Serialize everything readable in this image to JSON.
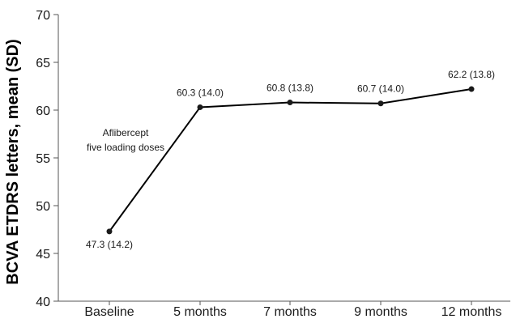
{
  "chart_data": {
    "type": "line",
    "ylabel": "BCVA ETDRS letters, mean (SD)",
    "xlabel": "",
    "title": "",
    "categories": [
      "Baseline",
      "5 months",
      "7 months",
      "9 months",
      "12 months"
    ],
    "ylim": [
      40,
      70
    ],
    "yticks": [
      40,
      45,
      50,
      55,
      60,
      65,
      70
    ],
    "grid": false,
    "series": [
      {
        "values": [
          47.3,
          60.3,
          60.8,
          60.7,
          62.2
        ],
        "sd": [
          14.2,
          14.0,
          13.8,
          14.0,
          13.8
        ],
        "data_labels": [
          "47.3 (14.2)",
          "60.3 (14.0)",
          "60.8 (13.8)",
          "60.7 (14.0)",
          "62.2 (13.8)"
        ]
      }
    ],
    "annotation": [
      "Aflibercept",
      "five loading doses"
    ],
    "line_color": "#000000",
    "marker_color": "#1a1a1a"
  }
}
